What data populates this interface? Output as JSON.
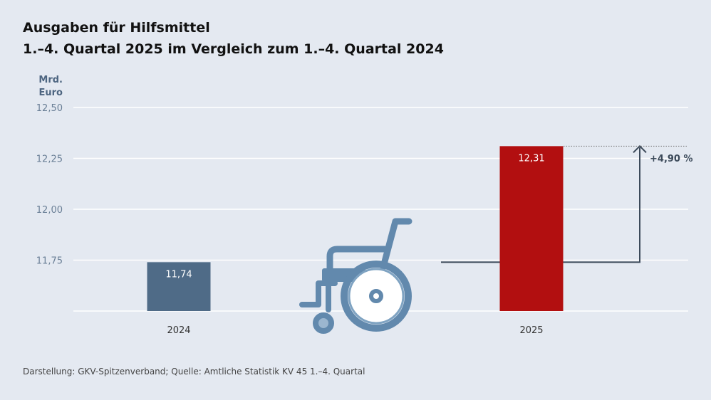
{
  "chart_data": {
    "type": "bar",
    "title": "Ausgaben für Hilfsmittel",
    "subtitle": "1.–4. Quartal 2025 im Vergleich zum 1.–4. Quartal 2024",
    "ylabel": "Mrd. Euro",
    "ylabel_lines": [
      "Mrd.",
      "Euro"
    ],
    "ylim": [
      11.5,
      12.5
    ],
    "yticks": [
      11.75,
      12.0,
      12.25,
      12.5
    ],
    "ytick_labels": [
      "11,75",
      "12,00",
      "12,25",
      "12,50"
    ],
    "grid": true,
    "categories": [
      "2024",
      "2025"
    ],
    "values": [
      11.74,
      12.31
    ],
    "data_labels": [
      "11,74",
      "12,31"
    ],
    "colors": [
      "#4f6b87",
      "#b20f10"
    ],
    "annotation": "+4,90 %",
    "icon": "wheelchair-icon",
    "icon_color": "#6289ad"
  },
  "source": "Darstellung: GKV-Spitzenverband; Quelle: Amtliche Statistik KV 45 1.–4. Quartal"
}
